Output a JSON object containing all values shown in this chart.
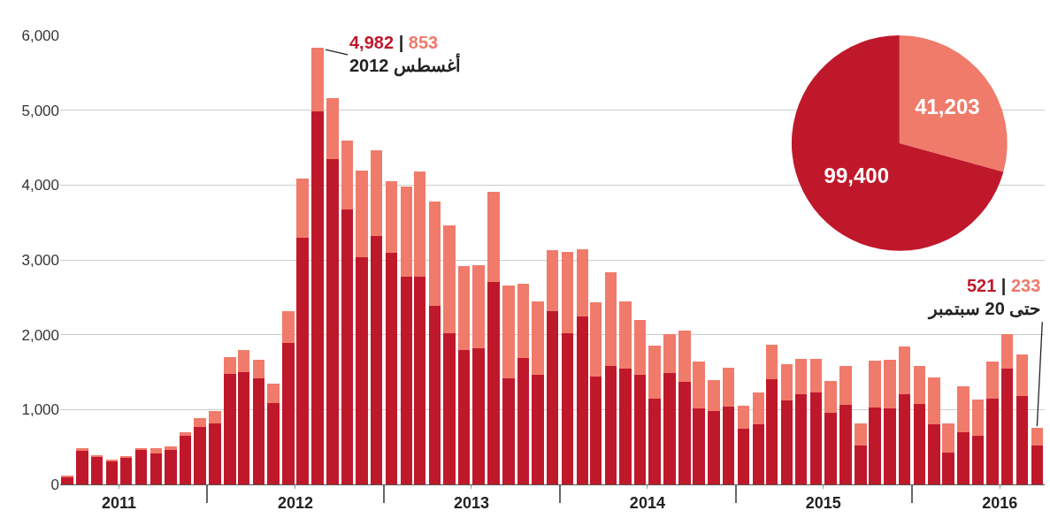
{
  "chart_data": [
    {
      "type": "bar",
      "stacked": true,
      "x": [
        "2011-03",
        "2011-04",
        "2011-05",
        "2011-06",
        "2011-07",
        "2011-08",
        "2011-09",
        "2011-10",
        "2011-11",
        "2011-12",
        "2012-01",
        "2012-02",
        "2012-03",
        "2012-04",
        "2012-05",
        "2012-06",
        "2012-07",
        "2012-08",
        "2012-09",
        "2012-10",
        "2012-11",
        "2012-12",
        "2013-01",
        "2013-02",
        "2013-03",
        "2013-04",
        "2013-05",
        "2013-06",
        "2013-07",
        "2013-08",
        "2013-09",
        "2013-10",
        "2013-11",
        "2013-12",
        "2014-01",
        "2014-02",
        "2014-03",
        "2014-04",
        "2014-05",
        "2014-06",
        "2014-07",
        "2014-08",
        "2014-09",
        "2014-10",
        "2014-11",
        "2014-12",
        "2015-01",
        "2015-02",
        "2015-03",
        "2015-04",
        "2015-05",
        "2015-06",
        "2015-07",
        "2015-08",
        "2015-09",
        "2015-10",
        "2015-11",
        "2015-12",
        "2016-01",
        "2016-02",
        "2016-03",
        "2016-04",
        "2016-05",
        "2016-06",
        "2016-07",
        "2016-08",
        "2016-09"
      ],
      "series": [
        {
          "color": "#c0182b",
          "values": [
            100,
            460,
            370,
            310,
            360,
            470,
            410,
            460,
            650,
            770,
            820,
            1480,
            1500,
            1420,
            1090,
            1890,
            3290,
            4982,
            4350,
            3670,
            3030,
            3320,
            3100,
            2770,
            2780,
            2380,
            2020,
            1800,
            1820,
            2700,
            1420,
            1690,
            1470,
            2320,
            2020,
            2250,
            1440,
            1580,
            1550,
            1470,
            1150,
            1490,
            1370,
            1010,
            980,
            1040,
            740,
            800,
            1410,
            1120,
            1200,
            1230,
            960,
            1060,
            520,
            1030,
            1020,
            1210,
            1080,
            800,
            430,
            700,
            650,
            1150,
            1550,
            1180,
            521
          ],
          "value_labels": [
            null,
            null,
            null,
            null,
            null,
            null,
            null,
            null,
            null,
            null,
            null,
            null,
            null,
            null,
            null,
            null,
            null,
            null,
            null,
            null,
            null,
            null,
            null,
            null,
            null,
            null,
            null,
            null,
            null,
            null,
            null,
            null,
            null,
            null,
            null,
            null,
            null,
            null,
            null,
            null,
            null,
            null,
            null,
            null,
            null,
            null,
            null,
            null,
            null,
            null,
            null,
            null,
            null,
            null,
            null,
            null,
            null,
            null,
            null,
            null,
            null,
            null,
            null,
            null,
            null,
            null,
            null
          ]
        },
        {
          "color": "#f07b6b",
          "values": [
            10,
            20,
            20,
            10,
            10,
            20,
            70,
            50,
            50,
            110,
            160,
            220,
            290,
            250,
            260,
            420,
            800,
            853,
            810,
            930,
            1160,
            1140,
            950,
            1210,
            1400,
            1400,
            1440,
            1120,
            1110,
            1210,
            1240,
            990,
            980,
            810,
            1090,
            890,
            990,
            1260,
            900,
            730,
            700,
            520,
            690,
            630,
            410,
            520,
            310,
            430,
            460,
            490,
            480,
            450,
            420,
            520,
            290,
            620,
            640,
            630,
            500,
            630,
            380,
            610,
            480,
            490,
            460,
            560,
            233
          ],
          "value_labels": [
            null,
            null,
            null,
            null,
            null,
            null,
            null,
            null,
            null,
            null,
            null,
            null,
            null,
            null,
            null,
            null,
            null,
            null,
            null,
            null,
            null,
            null,
            null,
            null,
            null,
            null,
            null,
            null,
            null,
            null,
            null,
            null,
            null,
            null,
            null,
            null,
            null,
            null,
            null,
            null,
            null,
            null,
            null,
            null,
            null,
            null,
            null,
            null,
            null,
            null,
            null,
            null,
            null,
            null,
            null,
            null,
            null,
            null,
            null,
            null,
            null,
            null,
            null,
            null,
            null,
            null,
            null
          ]
        }
      ],
      "xlim": [
        "2011-02-14",
        "2016-09-17"
      ],
      "xticks": [
        {
          "value": "2011-06-16",
          "label": "2011"
        },
        {
          "value": "2011-12-16",
          "label": null
        },
        {
          "value": "2012-06-16",
          "label": "2012"
        },
        {
          "value": "2012-12-16",
          "label": null
        },
        {
          "value": "2013-06-16",
          "label": "2013"
        },
        {
          "value": "2013-12-16",
          "label": null
        },
        {
          "value": "2014-06-16",
          "label": "2014"
        },
        {
          "value": "2014-12-16",
          "label": null
        },
        {
          "value": "2015-06-16",
          "label": "2015"
        },
        {
          "value": "2015-12-16",
          "label": null
        },
        {
          "value": "2016-06-16",
          "label": "2016"
        }
      ],
      "ylim": [
        0,
        6000
      ],
      "yticks": [
        {
          "value": 0,
          "label": "0"
        },
        {
          "value": 1000,
          "label": "1,000"
        },
        {
          "value": 2000,
          "label": "2,000"
        },
        {
          "value": 3000,
          "label": "3,000"
        },
        {
          "value": 4000,
          "label": "4,000"
        },
        {
          "value": 5000,
          "label": "5,000"
        },
        {
          "value": 6000,
          "label": "6,000"
        }
      ],
      "grid": "y",
      "legend": false,
      "annotations": [
        {
          "text": "4,982 | 853\nأغسطس 2012",
          "x": "2012-08",
          "y": 5835
        },
        {
          "text": "521 | 233\nحتى 20 سبتمبر",
          "x": "2016-09",
          "y": 754
        }
      ]
    },
    {
      "type": "pie",
      "categories": [
        null,
        null
      ],
      "values": [
        41203,
        99400
      ],
      "colors": [
        "#f07b6b",
        "#c0182b"
      ],
      "value_labels": [
        "41,203",
        "99,400"
      ],
      "legend": false
    }
  ]
}
